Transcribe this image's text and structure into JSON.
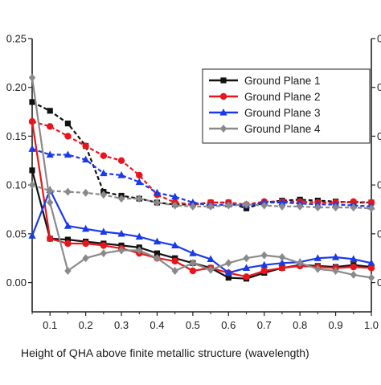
{
  "chart_data": {
    "type": "line",
    "title": "",
    "xlabel": "Height of QHA above finite metallic structure (wavelength)",
    "ylabel": "",
    "xlim": [
      0.05,
      1.0
    ],
    "ylim": [
      -0.03,
      0.25
    ],
    "x_ticks": [
      "0.1",
      "0.2",
      "0.3",
      "0.4",
      "0.5",
      "0.6",
      "0.7",
      "0.8",
      "0.9",
      "1.0"
    ],
    "y_ticks": [
      "0.00",
      "0.05",
      "0.10",
      "0.15",
      "0.20",
      "0.25"
    ],
    "right_tick_glyphs": [
      "0",
      "0",
      "0",
      "0",
      "0",
      "0"
    ],
    "grid": false,
    "legend_position": "top-right",
    "series": [
      {
        "name": "Ground Plane 1",
        "color": "#111111",
        "marker": "square",
        "solid": {
          "x": [
            0.05,
            0.1,
            0.15,
            0.2,
            0.25,
            0.3,
            0.35,
            0.4,
            0.45,
            0.5,
            0.55,
            0.6,
            0.65,
            0.7,
            0.75,
            0.8,
            0.85,
            0.9,
            0.95,
            1.0
          ],
          "y": [
            0.115,
            0.045,
            0.044,
            0.042,
            0.04,
            0.038,
            0.036,
            0.03,
            0.025,
            0.02,
            0.015,
            0.005,
            0.004,
            0.01,
            0.015,
            0.018,
            0.017,
            0.016,
            0.018,
            0.016
          ]
        },
        "dashed": {
          "x": [
            0.05,
            0.1,
            0.15,
            0.2,
            0.25,
            0.3,
            0.35,
            0.4,
            0.45,
            0.5,
            0.55,
            0.6,
            0.65,
            0.7,
            0.75,
            0.8,
            0.85,
            0.9,
            0.95,
            1.0
          ],
          "y": [
            0.185,
            0.176,
            0.163,
            0.14,
            0.093,
            0.089,
            0.086,
            0.082,
            0.08,
            0.08,
            0.082,
            0.082,
            0.076,
            0.082,
            0.084,
            0.085,
            0.084,
            0.083,
            0.082,
            0.082
          ]
        }
      },
      {
        "name": "Ground Plane 2",
        "color": "#e8161c",
        "marker": "circle",
        "solid": {
          "x": [
            0.05,
            0.1,
            0.15,
            0.2,
            0.25,
            0.3,
            0.35,
            0.4,
            0.45,
            0.5,
            0.55,
            0.6,
            0.65,
            0.7,
            0.75,
            0.8,
            0.85,
            0.9,
            0.95,
            1.0
          ],
          "y": [
            0.165,
            0.045,
            0.04,
            0.04,
            0.038,
            0.035,
            0.03,
            0.025,
            0.022,
            0.012,
            0.015,
            0.01,
            0.006,
            0.012,
            0.015,
            0.017,
            0.016,
            0.015,
            0.016,
            0.015
          ]
        },
        "dashed": {
          "x": [
            0.05,
            0.1,
            0.15,
            0.2,
            0.25,
            0.3,
            0.35,
            0.4,
            0.45,
            0.5,
            0.55,
            0.6,
            0.65,
            0.7,
            0.75,
            0.8,
            0.85,
            0.9,
            0.95,
            1.0
          ],
          "y": [
            0.165,
            0.16,
            0.15,
            0.14,
            0.13,
            0.125,
            0.11,
            0.09,
            0.082,
            0.08,
            0.082,
            0.082,
            0.08,
            0.083,
            0.083,
            0.083,
            0.082,
            0.082,
            0.083,
            0.082
          ]
        }
      },
      {
        "name": "Ground Plane 3",
        "color": "#1a3ae8",
        "marker": "triangle",
        "solid": {
          "x": [
            0.05,
            0.1,
            0.15,
            0.2,
            0.25,
            0.3,
            0.35,
            0.4,
            0.45,
            0.5,
            0.55,
            0.6,
            0.65,
            0.7,
            0.75,
            0.8,
            0.85,
            0.9,
            0.95,
            1.0
          ],
          "y": [
            0.048,
            0.095,
            0.058,
            0.055,
            0.052,
            0.05,
            0.047,
            0.042,
            0.038,
            0.03,
            0.024,
            0.01,
            0.015,
            0.018,
            0.02,
            0.021,
            0.025,
            0.026,
            0.024,
            0.02
          ]
        },
        "dashed": {
          "x": [
            0.05,
            0.1,
            0.15,
            0.2,
            0.25,
            0.3,
            0.35,
            0.4,
            0.45,
            0.5,
            0.55,
            0.6,
            0.65,
            0.7,
            0.75,
            0.8,
            0.85,
            0.9,
            0.95,
            1.0
          ],
          "y": [
            0.137,
            0.131,
            0.131,
            0.126,
            0.112,
            0.11,
            0.103,
            0.092,
            0.088,
            0.082,
            0.079,
            0.08,
            0.079,
            0.082,
            0.082,
            0.081,
            0.08,
            0.08,
            0.079,
            0.078
          ]
        }
      },
      {
        "name": "Ground Plane 4",
        "color": "#8a8a8a",
        "marker": "diamond",
        "solid": {
          "x": [
            0.05,
            0.1,
            0.15,
            0.2,
            0.25,
            0.3,
            0.35,
            0.4,
            0.45,
            0.5,
            0.55,
            0.6,
            0.65,
            0.7,
            0.75,
            0.8,
            0.85,
            0.9,
            0.95,
            1.0
          ],
          "y": [
            0.21,
            0.082,
            0.012,
            0.025,
            0.03,
            0.033,
            0.033,
            0.025,
            0.012,
            0.02,
            0.013,
            0.02,
            0.025,
            0.028,
            0.026,
            0.02,
            0.014,
            0.012,
            0.008,
            0.005
          ]
        },
        "dashed": {
          "x": [
            0.05,
            0.1,
            0.15,
            0.2,
            0.25,
            0.3,
            0.35,
            0.4,
            0.45,
            0.5,
            0.55,
            0.6,
            0.65,
            0.7,
            0.75,
            0.8,
            0.85,
            0.9,
            0.95,
            1.0
          ],
          "y": [
            0.1,
            0.094,
            0.093,
            0.092,
            0.09,
            0.086,
            0.086,
            0.082,
            0.079,
            0.078,
            0.078,
            0.079,
            0.08,
            0.079,
            0.078,
            0.078,
            0.077,
            0.077,
            0.077,
            0.076
          ]
        }
      }
    ]
  }
}
